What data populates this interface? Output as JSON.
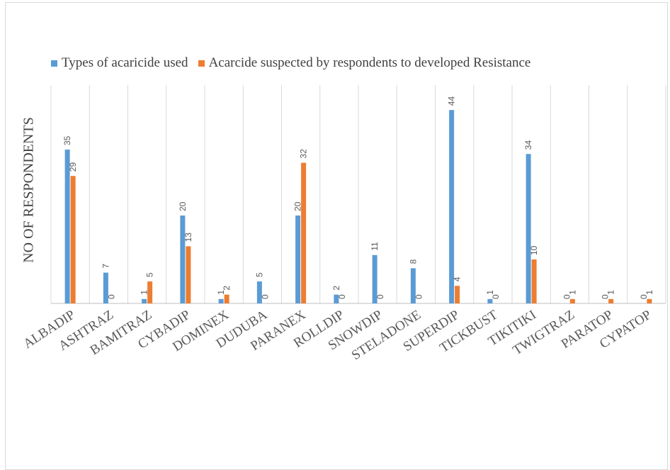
{
  "chart_data": {
    "type": "bar",
    "title": "",
    "xlabel": "",
    "ylabel": "NO OF RESPONDENTS",
    "categories": [
      "ALBADIP",
      "ASHTRAZ",
      "BAMITRAZ",
      "CYBADIP",
      "DOMINEX",
      "DUDUBA",
      "PARANEX",
      "ROLLDIP",
      "SNOWDIP",
      "STELADONE",
      "SUPERDIP",
      "TICKBUST",
      "TIKITIKI",
      "TWIGTRAZ",
      "PARATOP",
      "CYPATOP"
    ],
    "series": [
      {
        "name": "Types of acaricide used",
        "color": "#5B9BD5",
        "values": [
          35,
          7,
          1,
          20,
          1,
          5,
          20,
          2,
          11,
          8,
          44,
          1,
          34,
          0,
          0,
          0
        ]
      },
      {
        "name": "Acarcide suspected by respondents to developed Resistance",
        "color": "#ED7D31",
        "values": [
          29,
          0,
          5,
          13,
          2,
          0,
          32,
          0,
          0,
          0,
          4,
          0,
          10,
          1,
          1,
          1
        ]
      }
    ],
    "ylim": [
      0,
      50
    ],
    "grid": "vertical",
    "legend_position": "top",
    "data_labels": true
  }
}
